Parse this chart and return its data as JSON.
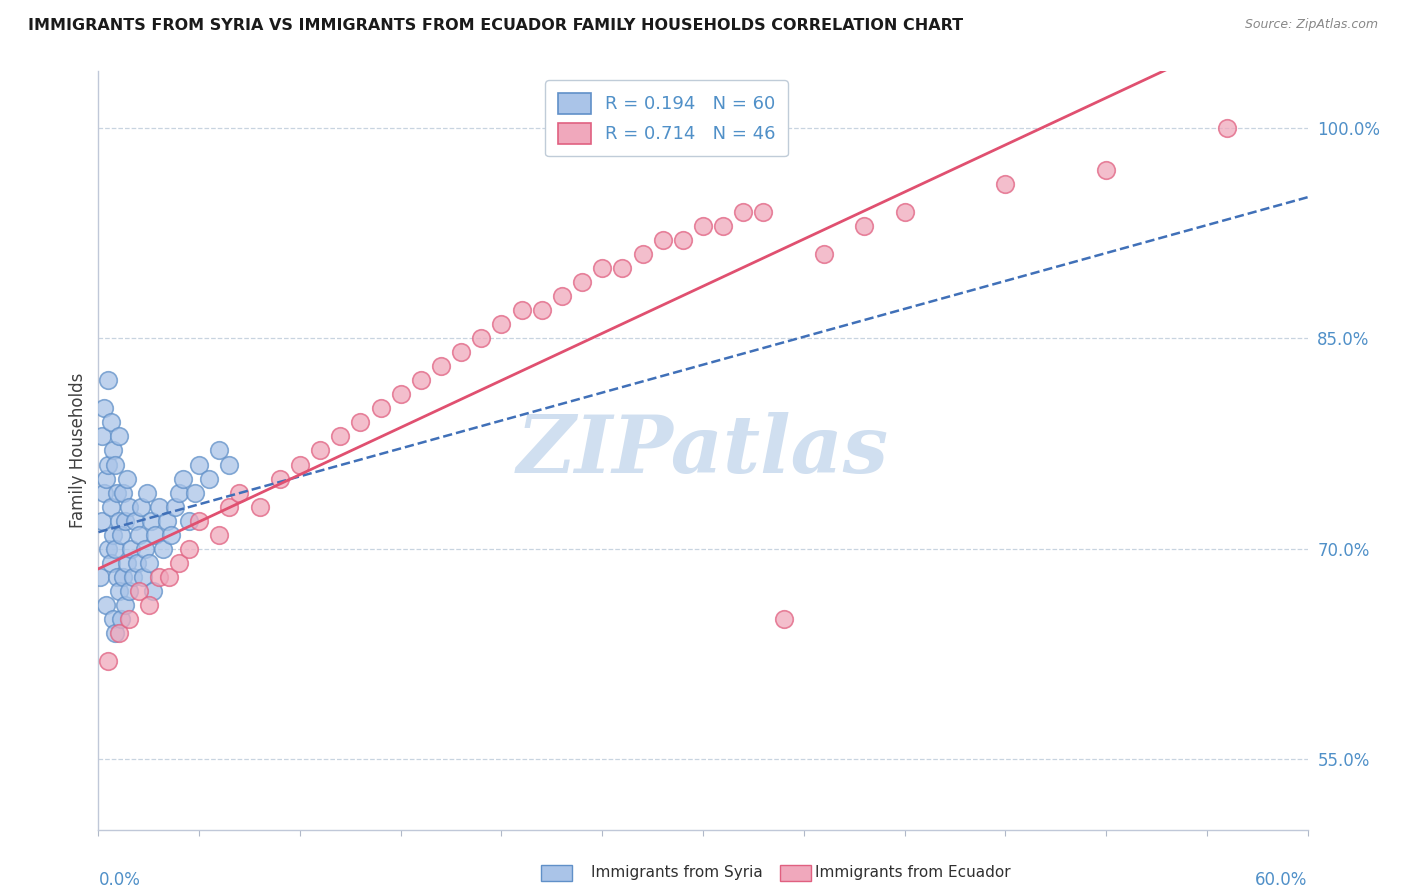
{
  "title": "IMMIGRANTS FROM SYRIA VS IMMIGRANTS FROM ECUADOR FAMILY HOUSEHOLDS CORRELATION CHART",
  "source": "Source: ZipAtlas.com",
  "ylabel": "Family Households",
  "x_min": 0.0,
  "x_max": 0.6,
  "y_min": 0.5,
  "y_max": 1.04,
  "y_ticks_right": [
    0.55,
    0.7,
    0.85,
    1.0
  ],
  "y_tick_labels_right": [
    "55.0%",
    "70.0%",
    "85.0%",
    "100.0%"
  ],
  "legend_r1": "R = 0.194",
  "legend_n1": "N = 60",
  "legend_r2": "R = 0.714",
  "legend_n2": "N = 46",
  "color_syria": "#aac4e8",
  "color_ecuador": "#f0a8bc",
  "color_syria_edge": "#6090c8",
  "color_ecuador_edge": "#e06080",
  "color_syria_line": "#4070b8",
  "color_ecuador_line": "#e05070",
  "color_axis_text": "#5090c8",
  "watermark": "ZIPatlas",
  "watermark_color": "#d0dff0",
  "background_color": "#ffffff",
  "grid_color": "#c8d4e0",
  "syria_x": [
    0.001,
    0.002,
    0.002,
    0.003,
    0.003,
    0.004,
    0.004,
    0.005,
    0.005,
    0.005,
    0.006,
    0.006,
    0.006,
    0.007,
    0.007,
    0.007,
    0.008,
    0.008,
    0.008,
    0.009,
    0.009,
    0.01,
    0.01,
    0.01,
    0.011,
    0.011,
    0.012,
    0.012,
    0.013,
    0.013,
    0.014,
    0.014,
    0.015,
    0.015,
    0.016,
    0.017,
    0.018,
    0.019,
    0.02,
    0.021,
    0.022,
    0.023,
    0.024,
    0.025,
    0.026,
    0.027,
    0.028,
    0.03,
    0.032,
    0.034,
    0.036,
    0.038,
    0.04,
    0.042,
    0.045,
    0.048,
    0.05,
    0.055,
    0.06,
    0.065
  ],
  "syria_y": [
    0.68,
    0.72,
    0.78,
    0.74,
    0.8,
    0.66,
    0.75,
    0.7,
    0.76,
    0.82,
    0.69,
    0.73,
    0.79,
    0.65,
    0.71,
    0.77,
    0.64,
    0.7,
    0.76,
    0.68,
    0.74,
    0.67,
    0.72,
    0.78,
    0.65,
    0.71,
    0.68,
    0.74,
    0.66,
    0.72,
    0.69,
    0.75,
    0.67,
    0.73,
    0.7,
    0.68,
    0.72,
    0.69,
    0.71,
    0.73,
    0.68,
    0.7,
    0.74,
    0.69,
    0.72,
    0.67,
    0.71,
    0.73,
    0.7,
    0.72,
    0.71,
    0.73,
    0.74,
    0.75,
    0.72,
    0.74,
    0.76,
    0.75,
    0.77,
    0.76
  ],
  "ecuador_x": [
    0.005,
    0.01,
    0.015,
    0.02,
    0.025,
    0.03,
    0.035,
    0.04,
    0.045,
    0.05,
    0.06,
    0.065,
    0.07,
    0.08,
    0.09,
    0.1,
    0.11,
    0.12,
    0.13,
    0.14,
    0.15,
    0.16,
    0.17,
    0.18,
    0.19,
    0.2,
    0.21,
    0.22,
    0.23,
    0.24,
    0.25,
    0.26,
    0.27,
    0.28,
    0.29,
    0.3,
    0.31,
    0.32,
    0.33,
    0.34,
    0.36,
    0.38,
    0.4,
    0.45,
    0.5,
    0.56
  ],
  "ecuador_y": [
    0.62,
    0.64,
    0.65,
    0.67,
    0.66,
    0.68,
    0.68,
    0.69,
    0.7,
    0.72,
    0.71,
    0.73,
    0.74,
    0.73,
    0.75,
    0.76,
    0.77,
    0.78,
    0.79,
    0.8,
    0.81,
    0.82,
    0.83,
    0.84,
    0.85,
    0.86,
    0.87,
    0.87,
    0.88,
    0.89,
    0.9,
    0.9,
    0.91,
    0.92,
    0.92,
    0.93,
    0.93,
    0.94,
    0.94,
    0.65,
    0.91,
    0.93,
    0.94,
    0.96,
    0.97,
    1.0
  ],
  "bottom_legend_label1": "Immigrants from Syria",
  "bottom_legend_label2": "Immigrants from Ecuador"
}
